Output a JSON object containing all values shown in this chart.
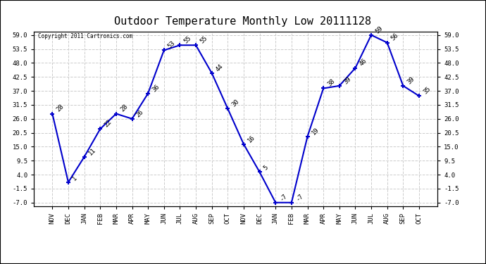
{
  "title": "Outdoor Temperature Monthly Low 20111128",
  "copyright": "Copyright 2011 Cartronics.com",
  "categories": [
    "NOV",
    "DEC",
    "JAN",
    "FEB",
    "MAR",
    "APR",
    "MAY",
    "JUN",
    "JUL",
    "AUG",
    "SEP",
    "OCT",
    "NOV",
    "DEC",
    "JAN",
    "FEB",
    "MAR",
    "APR",
    "MAY",
    "JUN",
    "JUL",
    "AUG",
    "SEP",
    "OCT"
  ],
  "values": [
    28,
    1,
    11,
    22,
    28,
    26,
    36,
    53,
    55,
    55,
    44,
    30,
    16,
    5,
    -7,
    -7,
    19,
    38,
    39,
    46,
    59,
    56,
    39,
    35
  ],
  "line_color": "#0000cc",
  "marker": "+",
  "markersize": 5,
  "linewidth": 1.5,
  "ylim_min": -7.0,
  "ylim_max": 59.0,
  "yticks": [
    -7.0,
    -1.5,
    4.0,
    9.5,
    15.0,
    20.5,
    26.0,
    31.5,
    37.0,
    42.5,
    48.0,
    53.5,
    59.0
  ],
  "ytick_labels": [
    "-7.0",
    "-1.5",
    "4.0",
    "9.5",
    "15.0",
    "20.5",
    "26.0",
    "31.5",
    "37.0",
    "42.5",
    "48.0",
    "53.5",
    "59.0"
  ],
  "grid_color": "#cccccc",
  "grid_style": "--",
  "bg_color": "#ffffff",
  "title_fontsize": 11,
  "label_fontsize": 6.5,
  "annotation_fontsize": 6.5,
  "tick_fontsize": 6.5
}
